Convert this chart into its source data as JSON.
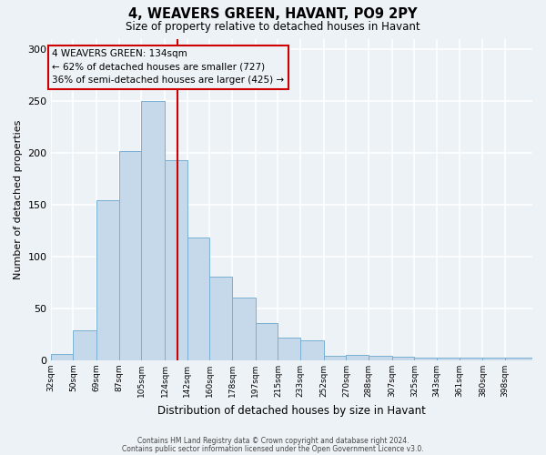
{
  "title": "4, WEAVERS GREEN, HAVANT, PO9 2PY",
  "subtitle": "Size of property relative to detached houses in Havant",
  "xlabel": "Distribution of detached houses by size in Havant",
  "ylabel": "Number of detached properties",
  "bar_labels": [
    "32sqm",
    "50sqm",
    "69sqm",
    "87sqm",
    "105sqm",
    "124sqm",
    "142sqm",
    "160sqm",
    "178sqm",
    "197sqm",
    "215sqm",
    "233sqm",
    "252sqm",
    "270sqm",
    "288sqm",
    "307sqm",
    "325sqm",
    "343sqm",
    "361sqm",
    "380sqm",
    "398sqm"
  ],
  "bar_values": [
    6,
    29,
    154,
    202,
    250,
    193,
    118,
    80,
    60,
    36,
    22,
    19,
    4,
    5,
    4,
    3,
    2,
    2,
    2,
    2,
    2
  ],
  "bar_color": "#c5d9ea",
  "bar_edge_color": "#7ab0d4",
  "ylim": [
    0,
    310
  ],
  "yticks": [
    0,
    50,
    100,
    150,
    200,
    250,
    300
  ],
  "vline_x": 134,
  "vline_color": "#cc0000",
  "annotation_title": "4 WEAVERS GREEN: 134sqm",
  "annotation_line1": "← 62% of detached houses are smaller (727)",
  "annotation_line2": "36% of semi-detached houses are larger (425) →",
  "annotation_box_color": "#cc0000",
  "background_color": "#edf2f7",
  "grid_color": "#ffffff",
  "footer1": "Contains HM Land Registry data © Crown copyright and database right 2024.",
  "footer2": "Contains public sector information licensed under the Open Government Licence v3.0.",
  "bin_edges": [
    32,
    50,
    69,
    87,
    105,
    124,
    142,
    160,
    178,
    197,
    215,
    233,
    252,
    270,
    288,
    307,
    325,
    343,
    361,
    380,
    398,
    420
  ]
}
